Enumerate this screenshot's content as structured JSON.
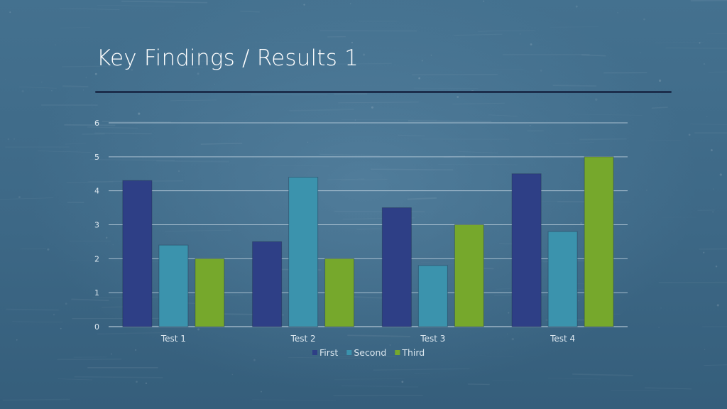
{
  "slide": {
    "title": "Key Findings / Results 1"
  },
  "chart_data": {
    "type": "bar",
    "categories": [
      "Test 1",
      "Test 2",
      "Test 3",
      "Test 4"
    ],
    "series": [
      {
        "name": "First",
        "values": [
          4.3,
          2.5,
          3.5,
          4.5
        ],
        "color": "#2e3f86"
      },
      {
        "name": "Second",
        "values": [
          2.4,
          4.4,
          1.8,
          2.8
        ],
        "color": "#3b93ad"
      },
      {
        "name": "Third",
        "values": [
          2.0,
          2.0,
          3.0,
          5.0
        ],
        "color": "#76a82c"
      }
    ],
    "title": "",
    "xlabel": "",
    "ylabel": "",
    "ylim": [
      0,
      6
    ],
    "yticks": [
      "0",
      "1",
      "2",
      "3",
      "4",
      "5",
      "6"
    ],
    "grid": true,
    "legend_position": "bottom"
  }
}
